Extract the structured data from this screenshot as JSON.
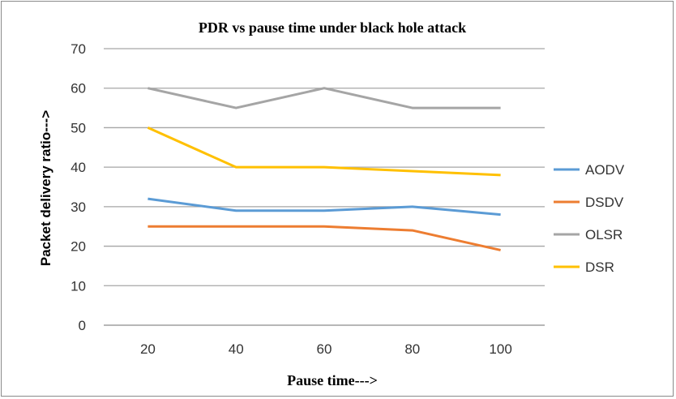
{
  "chart_data": {
    "type": "line",
    "title": "PDR vs pause time under black hole attack",
    "xlabel": "Pause time--->",
    "ylabel": "Packet delivery ratio--->",
    "categories": [
      "20",
      "40",
      "60",
      "80",
      "100"
    ],
    "ylim": [
      0,
      70
    ],
    "yticks": [
      "0",
      "10",
      "20",
      "30",
      "40",
      "50",
      "60",
      "70"
    ],
    "grid": true,
    "legend": "right",
    "series": [
      {
        "name": "AODV",
        "color": "#5b9bd5",
        "values": [
          32,
          29,
          29,
          30,
          28
        ]
      },
      {
        "name": "DSDV",
        "color": "#ed7d31",
        "values": [
          25,
          25,
          25,
          24,
          19
        ]
      },
      {
        "name": "OLSR",
        "color": "#a5a5a5",
        "values": [
          60,
          55,
          60,
          55,
          55
        ]
      },
      {
        "name": "DSR",
        "color": "#ffc000",
        "values": [
          50,
          40,
          40,
          39,
          38
        ]
      }
    ]
  }
}
